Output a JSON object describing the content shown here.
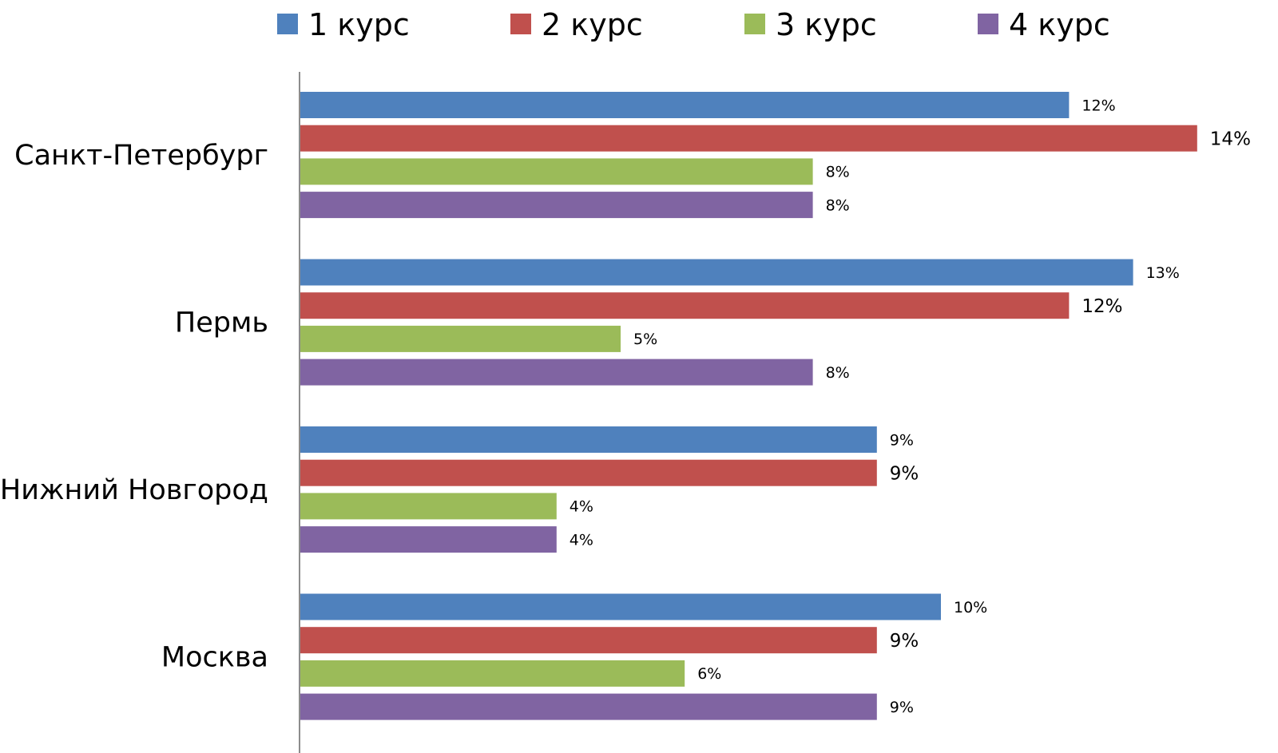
{
  "chart_data": {
    "type": "bar",
    "orientation": "horizontal",
    "title": "",
    "xlabel": "",
    "ylabel": "",
    "xlim": [
      0,
      14
    ],
    "grid": false,
    "legend_position": "top",
    "categories": [
      "Санкт-Петербург",
      "Пермь",
      "Нижний Новгород",
      "Москва"
    ],
    "series": [
      {
        "name": "1 курс",
        "color": "#4F81BD",
        "values": [
          12,
          13,
          9,
          10
        ],
        "labels": [
          "12%",
          "13%",
          "9%",
          "10%"
        ]
      },
      {
        "name": "2 курс",
        "color": "#C0504D",
        "values": [
          14,
          12,
          9,
          9
        ],
        "labels": [
          "14%",
          "12%",
          "9%",
          "9%"
        ]
      },
      {
        "name": "3 курс",
        "color": "#9BBB59",
        "values": [
          8,
          5,
          4,
          6
        ],
        "labels": [
          "8%",
          "5%",
          "4%",
          "6%"
        ]
      },
      {
        "name": "4 курс",
        "color": "#8064A2",
        "values": [
          8,
          8,
          4,
          9
        ],
        "labels": [
          "8%",
          "8%",
          "4%",
          "9%"
        ]
      }
    ]
  }
}
